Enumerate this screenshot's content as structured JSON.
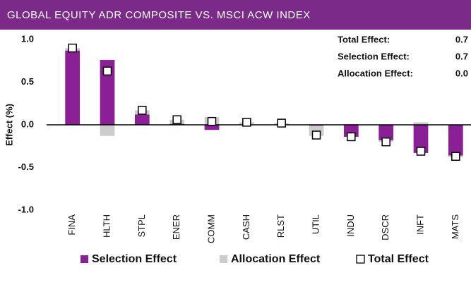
{
  "chart_data": {
    "type": "bar",
    "title": "GLOBAL EQUITY ADR COMPOSITE VS. MSCI ACW INDEX",
    "y_label": "Effect (%)",
    "categories": [
      "FINA",
      "HLTH",
      "STPL",
      "ENER",
      "COMM",
      "CASH",
      "RLST",
      "UTIL",
      "INDU",
      "DSCR",
      "INFT",
      "MATS"
    ],
    "series": [
      {
        "name": "Selection Effect",
        "color": "#8a1f96",
        "kind": "bar",
        "values": [
          0.87,
          0.76,
          0.12,
          0.01,
          -0.06,
          0,
          0,
          -0.01,
          -0.14,
          -0.18,
          -0.33,
          -0.36
        ]
      },
      {
        "name": "Allocation Effect",
        "color": "#cccccc",
        "kind": "bar",
        "values": [
          0.03,
          -0.13,
          0.05,
          0.05,
          0.09,
          0.03,
          0.02,
          -0.12,
          0.01,
          -0.02,
          0.03,
          -0.02
        ]
      },
      {
        "name": "Total Effect",
        "color": "#ffffff",
        "kind": "marker",
        "values": [
          0.9,
          0.63,
          0.17,
          0.06,
          0.04,
          0.03,
          0.02,
          -0.12,
          -0.14,
          -0.2,
          -0.31,
          -0.37
        ]
      }
    ],
    "ylim": [
      -1,
      1
    ],
    "yticks": [
      {
        "value": 1,
        "label": "1.0"
      },
      0.5,
      {
        "value": 0,
        "label": "0.0"
      },
      -0.5,
      {
        "value": -1,
        "label": "-1.0"
      }
    ],
    "annotations": [
      {
        "label": "Total Effect:",
        "value": "0.7"
      },
      {
        "label": "Selection Effect:",
        "value": "0.7"
      },
      {
        "label": "Allocation Effect:",
        "value": "0.0"
      }
    ],
    "legend": "bottom"
  }
}
